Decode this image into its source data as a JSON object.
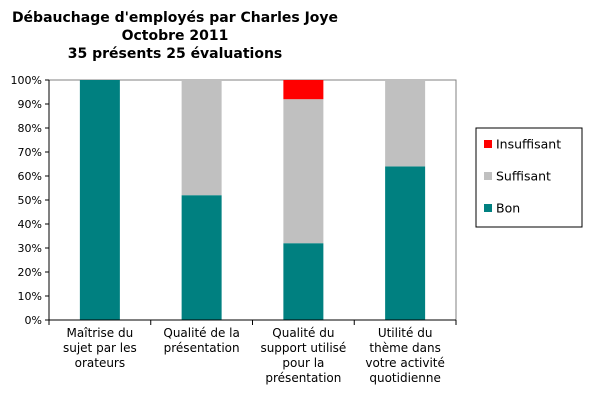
{
  "chart_data": {
    "type": "bar",
    "stacked": true,
    "percent": true,
    "title": [
      "Débauchage d'employés par Charles Joye",
      "Octobre 2011",
      "35 présents 25 évaluations"
    ],
    "categories": [
      [
        "Maîtrise du",
        "sujet par les",
        "orateurs"
      ],
      [
        "Qualité de la",
        "présentation"
      ],
      [
        "Qualité du",
        "support utilisé",
        "pour la",
        "présentation"
      ],
      [
        "Utilité du",
        "thème dans",
        "votre activité",
        "quotidienne"
      ]
    ],
    "series": [
      {
        "name": "Bon",
        "color": "#008080",
        "values": [
          100,
          52,
          32,
          64
        ]
      },
      {
        "name": "Suffisant",
        "color": "#c0c0c0",
        "values": [
          0,
          48,
          60,
          36
        ]
      },
      {
        "name": "Insuffisant",
        "color": "#ff0000",
        "values": [
          0,
          0,
          8,
          0
        ]
      }
    ],
    "ylim": [
      0,
      100
    ],
    "yticks": [
      "0%",
      "10%",
      "20%",
      "30%",
      "40%",
      "50%",
      "60%",
      "70%",
      "80%",
      "90%",
      "100%"
    ],
    "legend_order": [
      "Insuffisant",
      "Suffisant",
      "Bon"
    ],
    "legend_position": "right",
    "grid": false
  }
}
